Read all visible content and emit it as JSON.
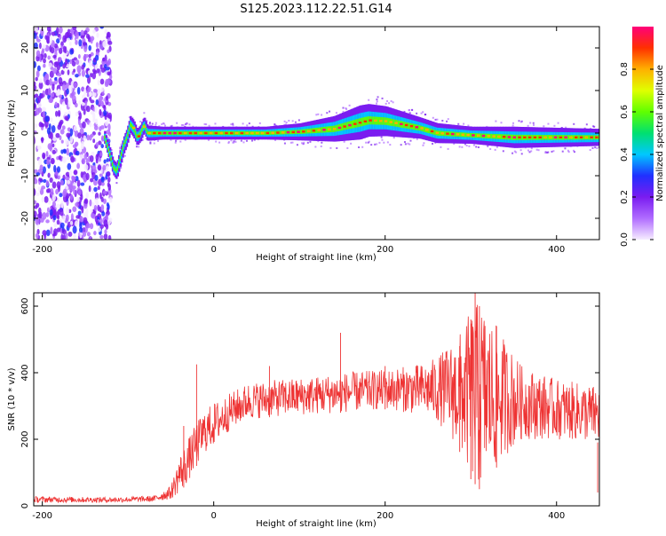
{
  "title": "S125.2023.112.22.51.G14",
  "chart_data": [
    {
      "type": "heatmap",
      "xlabel": "Height of straight line (km)",
      "ylabel": "Frequency (Hz)",
      "xlim": [
        -210,
        450
      ],
      "ylim": [
        -25,
        25
      ],
      "xticks": [
        -200,
        0,
        200,
        400
      ],
      "yticks": [
        -20,
        -10,
        0,
        10,
        20
      ],
      "colorbar": {
        "label": "Normalized spectral amplitude",
        "range": [
          0,
          1
        ],
        "ticks": [
          0.0,
          0.2,
          0.4,
          0.6,
          0.8
        ],
        "tick_labels": [
          "0.0",
          "0.2",
          "0.4",
          "0.6",
          "0.8"
        ],
        "colors": [
          "#f6ecff",
          "#b06cff",
          "#7a1cf0",
          "#2030ff",
          "#00c8ff",
          "#00e070",
          "#60ff00",
          "#e0ff00",
          "#ffb000",
          "#ff3000",
          "#ff007a"
        ]
      },
      "noise_region_x": [
        -210,
        -120
      ],
      "ridge": [
        [
          -128,
          -1
        ],
        [
          -122,
          -5
        ],
        [
          -118,
          -8
        ],
        [
          -114,
          -9
        ],
        [
          -110,
          -6
        ],
        [
          -106,
          -3
        ],
        [
          -102,
          -1
        ],
        [
          -98,
          2
        ],
        [
          -94,
          1
        ],
        [
          -90,
          -1
        ],
        [
          -86,
          0
        ],
        [
          -82,
          2
        ],
        [
          -78,
          0
        ],
        [
          -60,
          0
        ],
        [
          0,
          0
        ],
        [
          60,
          0
        ],
        [
          100,
          0.3
        ],
        [
          140,
          1
        ],
        [
          160,
          2
        ],
        [
          180,
          3
        ],
        [
          200,
          2.8
        ],
        [
          220,
          2
        ],
        [
          240,
          1.2
        ],
        [
          260,
          0
        ],
        [
          300,
          -0.5
        ],
        [
          350,
          -1
        ],
        [
          400,
          -1
        ],
        [
          450,
          -1
        ]
      ],
      "ridge_halo_hz": [
        [
          -128,
          1.5
        ],
        [
          -110,
          2
        ],
        [
          -90,
          2
        ],
        [
          -60,
          1.5
        ],
        [
          0,
          1.5
        ],
        [
          60,
          1.5
        ],
        [
          100,
          2
        ],
        [
          140,
          3
        ],
        [
          170,
          4
        ],
        [
          200,
          3.5
        ],
        [
          240,
          2.5
        ],
        [
          300,
          2
        ],
        [
          350,
          2.5
        ],
        [
          450,
          2
        ]
      ]
    },
    {
      "type": "line",
      "xlabel": "Height of straight line (km)",
      "ylabel": "SNR (10 * v/v)",
      "xlim": [
        -210,
        450
      ],
      "ylim": [
        0,
        640
      ],
      "xticks": [
        -200,
        0,
        200,
        400
      ],
      "yticks": [
        0,
        200,
        400,
        600
      ],
      "color": "#ee3333",
      "envelope": [
        [
          -210,
          10,
          28
        ],
        [
          -120,
          10,
          26
        ],
        [
          -70,
          12,
          30
        ],
        [
          -50,
          20,
          60
        ],
        [
          -40,
          40,
          150
        ],
        [
          -30,
          70,
          200
        ],
        [
          -20,
          120,
          250
        ],
        [
          -10,
          160,
          290
        ],
        [
          0,
          180,
          310
        ],
        [
          20,
          230,
          340
        ],
        [
          40,
          260,
          370
        ],
        [
          80,
          270,
          380
        ],
        [
          120,
          275,
          390
        ],
        [
          150,
          280,
          400
        ],
        [
          200,
          290,
          410
        ],
        [
          250,
          270,
          430
        ],
        [
          270,
          230,
          470
        ],
        [
          290,
          150,
          530
        ],
        [
          300,
          80,
          590
        ],
        [
          310,
          50,
          620
        ],
        [
          320,
          80,
          580
        ],
        [
          340,
          150,
          500
        ],
        [
          360,
          200,
          420
        ],
        [
          400,
          200,
          380
        ],
        [
          450,
          190,
          360
        ]
      ],
      "spikes": [
        [
          -20,
          425
        ],
        [
          148,
          520
        ],
        [
          305,
          640
        ],
        [
          310,
          600
        ],
        [
          300,
          560
        ],
        [
          330,
          540
        ],
        [
          287,
          480
        ],
        [
          448,
          40
        ],
        [
          -35,
          240
        ],
        [
          65,
          420
        ],
        [
          200,
          420
        ]
      ]
    }
  ]
}
